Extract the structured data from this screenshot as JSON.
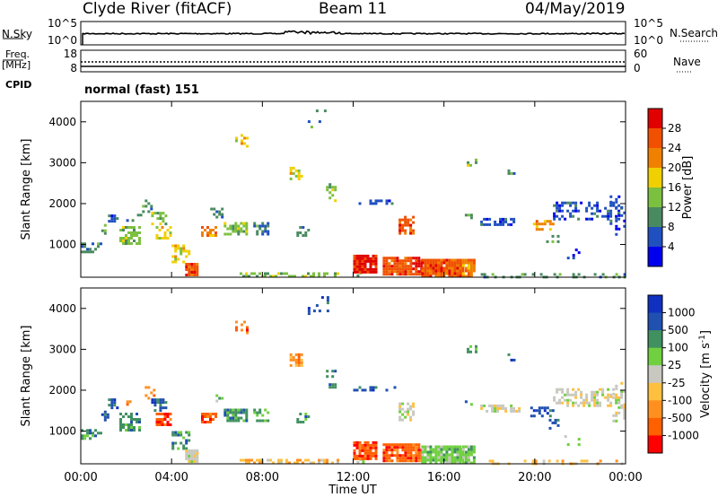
{
  "header": {
    "station": "Clyde River (fitACF)",
    "beam": "Beam 11",
    "date": "04/May/2019"
  },
  "left_labels": {
    "nsky": "N.Sky",
    "freq": "Freq.",
    "freq_unit": "[MHz]",
    "cpid": "CPID"
  },
  "right_labels": {
    "nsearch": "N.Search",
    "nave": "Nave"
  },
  "cpid_text": "normal (fast) 151",
  "colors": {
    "power": [
      "#0000ee",
      "#2050c0",
      "#4a8a60",
      "#7cc040",
      "#f0d000",
      "#f08000",
      "#f05000",
      "#e00000"
    ],
    "velocity": [
      "#ff0000",
      "#ff6000",
      "#ff9020",
      "#ffc040",
      "#c8c8c0",
      "#70d040",
      "#409060",
      "#2050b0",
      "#1030c0"
    ]
  },
  "chart_data": [
    {
      "type": "line",
      "panel": "noise",
      "left_ticks": [
        "10^5",
        "10^0"
      ],
      "right_ticks": [
        "10^5",
        "10^0"
      ]
    },
    {
      "type": "line",
      "panel": "frequency",
      "left_ticks": [
        "18",
        "8"
      ],
      "right_ticks": [
        "60",
        "0"
      ]
    },
    {
      "type": "heatmap",
      "panel": "power",
      "ylabel": "Slant Range [km]",
      "yticks": [
        1000,
        2000,
        3000,
        4000
      ],
      "ylim": [
        200,
        4500
      ],
      "xlim": [
        0,
        24
      ],
      "colorbar": {
        "label": "Power [dB]",
        "ticks": [
          "4",
          "8",
          "12",
          "16",
          "20",
          "24",
          "28"
        ]
      }
    },
    {
      "type": "heatmap",
      "panel": "velocity",
      "ylabel": "Slant Range [km]",
      "yticks": [
        1000,
        2000,
        3000,
        4000
      ],
      "ylim": [
        200,
        4500
      ],
      "xlim": [
        0,
        24
      ],
      "colorbar": {
        "label": "Velocity [m s",
        "label_sup": "-1",
        "label_end": "]",
        "ticks": [
          "1000",
          "500",
          "100",
          "25",
          "-25",
          "-100",
          "-500",
          "-1000"
        ]
      }
    }
  ],
  "xaxis": {
    "label": "Time UT",
    "ticks": [
      "00:00",
      "04:00",
      "08:00",
      "12:00",
      "16:00",
      "20:00",
      "00:00"
    ]
  }
}
